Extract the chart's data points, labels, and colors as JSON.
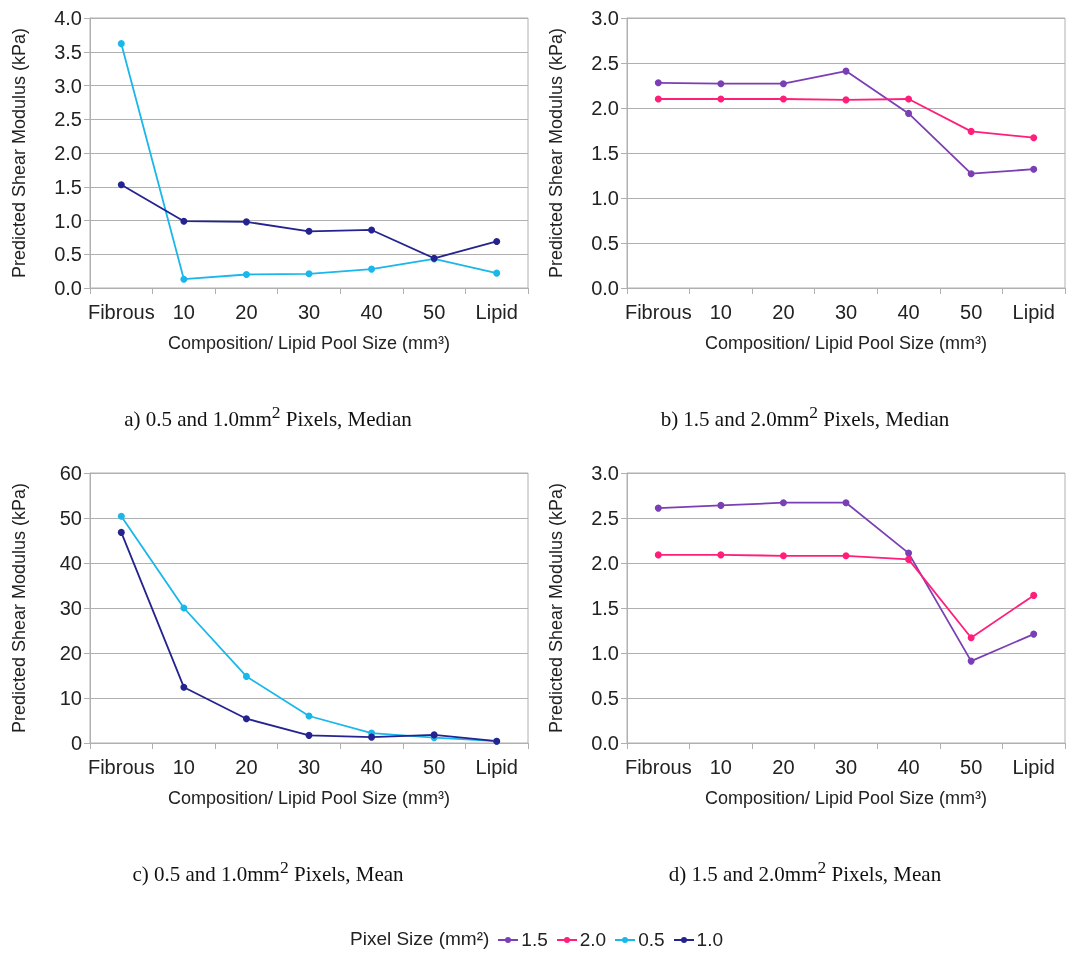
{
  "chart_data": [
    {
      "type": "line",
      "title": "a) 0.5 and 1.0mm$^{2}$ Pixels, Median",
      "xlabel": "Composition/ Lipid Pool Size (mm³)",
      "ylabel": "Predicted Shear Modulus (kPa)",
      "categories": [
        "Fibrous",
        "10",
        "20",
        "30",
        "40",
        "50",
        "Lipid"
      ],
      "series": [
        {
          "name": "0.5",
          "color": "#1ab7ea",
          "values": [
            3.62,
            0.13,
            0.2,
            0.21,
            0.28,
            0.43,
            0.22
          ]
        },
        {
          "name": "1.0",
          "color": "#24238f",
          "values": [
            1.53,
            0.99,
            0.98,
            0.84,
            0.86,
            0.44,
            0.69
          ]
        }
      ],
      "ylim": [
        0,
        4
      ],
      "yticks": [
        {
          "value": 0,
          "label": "0.0"
        },
        0.5,
        {
          "value": 1,
          "label": "1.0"
        },
        1.5,
        {
          "value": 2,
          "label": "2.0"
        },
        2.5,
        {
          "value": 3,
          "label": "3.0"
        },
        3.5,
        {
          "value": 4,
          "label": "4.0"
        }
      ],
      "grid": "y",
      "marker": "circle",
      "line_style": "solid",
      "legend": "bottom"
    },
    {
      "type": "line",
      "title": "b) 1.5 and 2.0mm$^{2}$ Pixels, Median",
      "xlabel": "Composition/ Lipid Pool Size (mm³)",
      "ylabel": "Predicted Shear Modulus (kPa)",
      "categories": [
        "Fibrous",
        "10",
        "20",
        "30",
        "40",
        "50",
        "Lipid"
      ],
      "series": [
        {
          "name": "1.5",
          "color": "#7b3fb5",
          "values": [
            2.28,
            2.27,
            2.27,
            2.41,
            1.94,
            1.27,
            1.32
          ]
        },
        {
          "name": "2.0",
          "color": "#ff1f7a",
          "values": [
            2.1,
            2.1,
            2.1,
            2.09,
            2.1,
            1.74,
            1.67
          ]
        }
      ],
      "ylim": [
        0,
        3
      ],
      "yticks": [
        {
          "value": 0,
          "label": "0.0"
        },
        0.5,
        {
          "value": 1,
          "label": "1.0"
        },
        1.5,
        {
          "value": 2,
          "label": "2.0"
        },
        2.5,
        {
          "value": 3,
          "label": "3.0"
        }
      ],
      "grid": "y",
      "marker": "circle",
      "line_style": "solid",
      "legend": "bottom"
    },
    {
      "type": "line",
      "title": "c) 0.5 and 1.0mm$^{2}$ Pixels, Mean",
      "xlabel": "Composition/ Lipid Pool Size (mm³)",
      "ylabel": "Predicted Shear Modulus (kPa)",
      "categories": [
        "Fibrous",
        "10",
        "20",
        "30",
        "40",
        "50",
        "Lipid"
      ],
      "series": [
        {
          "name": "0.5",
          "color": "#1ab7ea",
          "values": [
            50.4,
            30.0,
            14.8,
            6.0,
            2.2,
            1.2,
            0.4
          ]
        },
        {
          "name": "1.0",
          "color": "#24238f",
          "values": [
            46.8,
            12.4,
            5.4,
            1.7,
            1.3,
            1.8,
            0.4
          ]
        }
      ],
      "ylim": [
        0,
        60
      ],
      "yticks": [
        0,
        10,
        20,
        30,
        40,
        50,
        60
      ],
      "grid": "y",
      "marker": "circle",
      "line_style": "solid",
      "legend": "bottom"
    },
    {
      "type": "line",
      "title": "d) 1.5 and 2.0mm$^{2}$ Pixels, Mean",
      "xlabel": "Composition/ Lipid Pool Size (mm³)",
      "ylabel": "Predicted Shear Modulus (kPa)",
      "legend_title": "Pixel Size (mm²)",
      "categories": [
        "Fibrous",
        "10",
        "20",
        "30",
        "40",
        "50",
        "Lipid"
      ],
      "series": [
        {
          "name": "1.5",
          "color": "#7b3fb5",
          "values": [
            2.61,
            2.64,
            2.67,
            2.67,
            2.11,
            0.91,
            1.21
          ]
        },
        {
          "name": "2.0",
          "color": "#ff1f7a",
          "values": [
            2.09,
            2.09,
            2.08,
            2.08,
            2.04,
            1.17,
            1.64
          ]
        }
      ],
      "ylim": [
        0,
        3
      ],
      "yticks": [
        {
          "value": 0,
          "label": "0.0"
        },
        0.5,
        {
          "value": 1,
          "label": "1.0"
        },
        1.5,
        {
          "value": 2,
          "label": "2.0"
        },
        2.5,
        {
          "value": 3,
          "label": "3.0"
        }
      ],
      "grid": "y",
      "marker": "circle",
      "line_style": "solid",
      "legend": "bottom"
    }
  ]
}
